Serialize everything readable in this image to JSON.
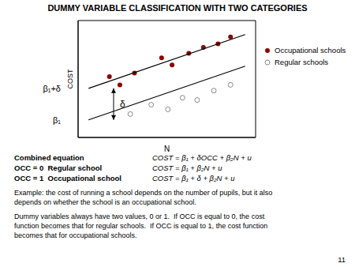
{
  "chart_data": {
    "type": "scatter",
    "title": "DUMMY VARIABLE CLASSIFICATION WITH TWO CATEGORIES",
    "xlabel": "N",
    "ylabel": "COST",
    "xlim": [
      1.5,
      10.0
    ],
    "ylim": [
      1.0,
      11.0
    ],
    "tick_labels": false,
    "legend": "right",
    "series": [
      {
        "name": "Occupational schools",
        "type": "scatter",
        "marker": "circle",
        "color": "#8b0000",
        "x": [
          3.0,
          3.5,
          4.2,
          5.5,
          6.0,
          6.8,
          7.5,
          8.2,
          8.8
        ],
        "y": [
          6.2,
          5.5,
          6.5,
          7.8,
          7.2,
          8.2,
          8.7,
          9.0,
          9.6
        ]
      },
      {
        "name": "Regular schools",
        "type": "scatter",
        "marker": "open_circle",
        "color": "#888888",
        "x": [
          4.0,
          5.0,
          5.8,
          6.5,
          7.2,
          8.0,
          8.8
        ],
        "y": [
          3.0,
          3.8,
          3.4,
          4.4,
          4.2,
          5.0,
          5.5
        ]
      },
      {
        "type": "line",
        "color": "#000000",
        "x": [
          2.0,
          9.5
        ],
        "y": [
          5.2,
          9.8
        ]
      },
      {
        "type": "line",
        "color": "#000000",
        "x": [
          2.0,
          9.5
        ],
        "y": [
          2.5,
          7.1
        ]
      }
    ],
    "annotations": [
      {
        "text": "β₁+δ",
        "y": 5.2
      },
      {
        "text": "β₁",
        "y": 2.5
      },
      {
        "text": "δ",
        "arrow": {
          "x": 3.2,
          "y": [
            2.5,
            5.2
          ]
        }
      }
    ],
    "captions": [
      {
        "label": "Combined equation",
        "formula": "COST = β₁ + δOCC + β₂N + u"
      },
      {
        "label": "OCC = 0  Regular school",
        "formula": "COST = β₁ + β₂N + u"
      },
      {
        "label": "OCC = 1  Occupational school",
        "formula": "COST = β₁ + δ + β₂N + u"
      }
    ],
    "paragraphs": [
      "Example: the cost of running a school depends on the number of pupils, but it also\ndepends on whether the school is an occupational school.",
      "Dummy variables always have two values, 0 or 1.  If OCC is equal to 0, the cost\nfunction becomes that for regular schools.  If OCC is equal to 1, the cost function\nbecomes that for occupational schools."
    ],
    "page_number": "11"
  }
}
